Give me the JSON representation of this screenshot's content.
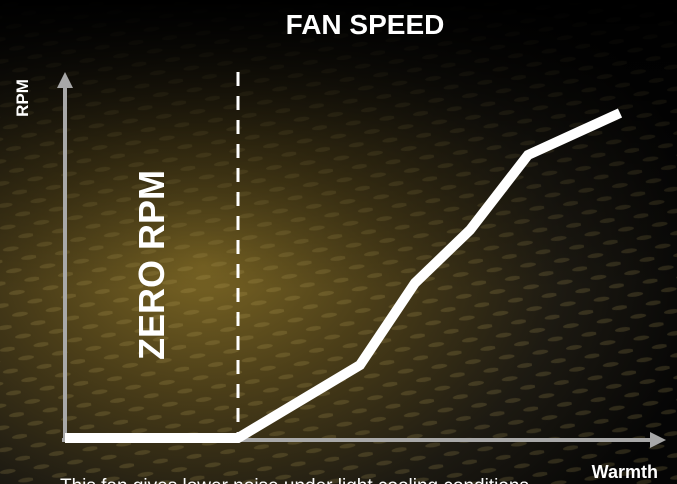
{
  "title": "FAN SPEED",
  "y_axis_label": "RPM",
  "x_axis_label": "Warmth",
  "zone_label": "ZERO RPM",
  "caption": "This fan gives lower noise under light cooling conditions"
}
